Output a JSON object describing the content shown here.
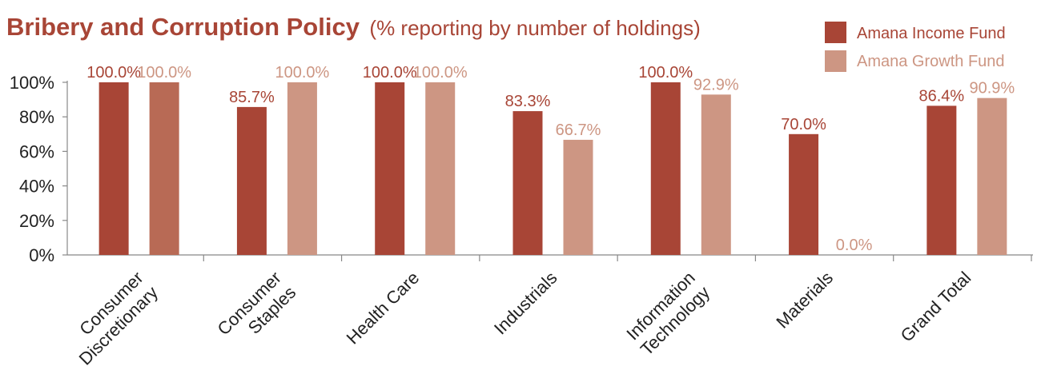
{
  "chart_data": {
    "type": "bar",
    "title": "Bribery and Corruption Policy",
    "subtitle": "(% reporting by number of holdings)",
    "categories": [
      [
        "Consumer",
        "Discretionary"
      ],
      [
        "Consumer",
        "Staples"
      ],
      [
        "Health Care"
      ],
      [
        "Industrials"
      ],
      [
        "Information",
        "Technology"
      ],
      [
        "Materials"
      ],
      [
        "Grand Total"
      ]
    ],
    "series": [
      {
        "name": "Amana Income Fund",
        "color": "#a84536",
        "values": [
          100.0,
          85.7,
          100.0,
          83.3,
          100.0,
          70.0,
          86.4
        ],
        "labels": [
          "100.0%",
          "85.7%",
          "100.0%",
          "83.3%",
          "100.0%",
          "70.0%",
          "86.4%"
        ]
      },
      {
        "name": "Amana Growth Fund",
        "color": "#cd9683",
        "bar_colors": [
          "#b86a55",
          "#cd9683",
          "#cd9683",
          "#cd9683",
          "#cd9683",
          "#cd9683",
          "#cd9683"
        ],
        "values": [
          100.0,
          100.0,
          100.0,
          66.7,
          92.9,
          0.0,
          90.9
        ],
        "labels": [
          "100.0%",
          "100.0%",
          "100.0%",
          "66.7%",
          "92.9%",
          "0.0%",
          "90.9%"
        ]
      }
    ],
    "yticks": [
      0,
      20,
      40,
      60,
      80,
      100
    ],
    "ytick_labels": [
      "0%",
      "20%",
      "40%",
      "60%",
      "80%",
      "100%"
    ],
    "ylim": [
      0,
      100
    ],
    "grid": false,
    "legend": "top-right",
    "title_color": "#a84536",
    "axis_color": "#888888",
    "tick_label_color": "#222222"
  }
}
